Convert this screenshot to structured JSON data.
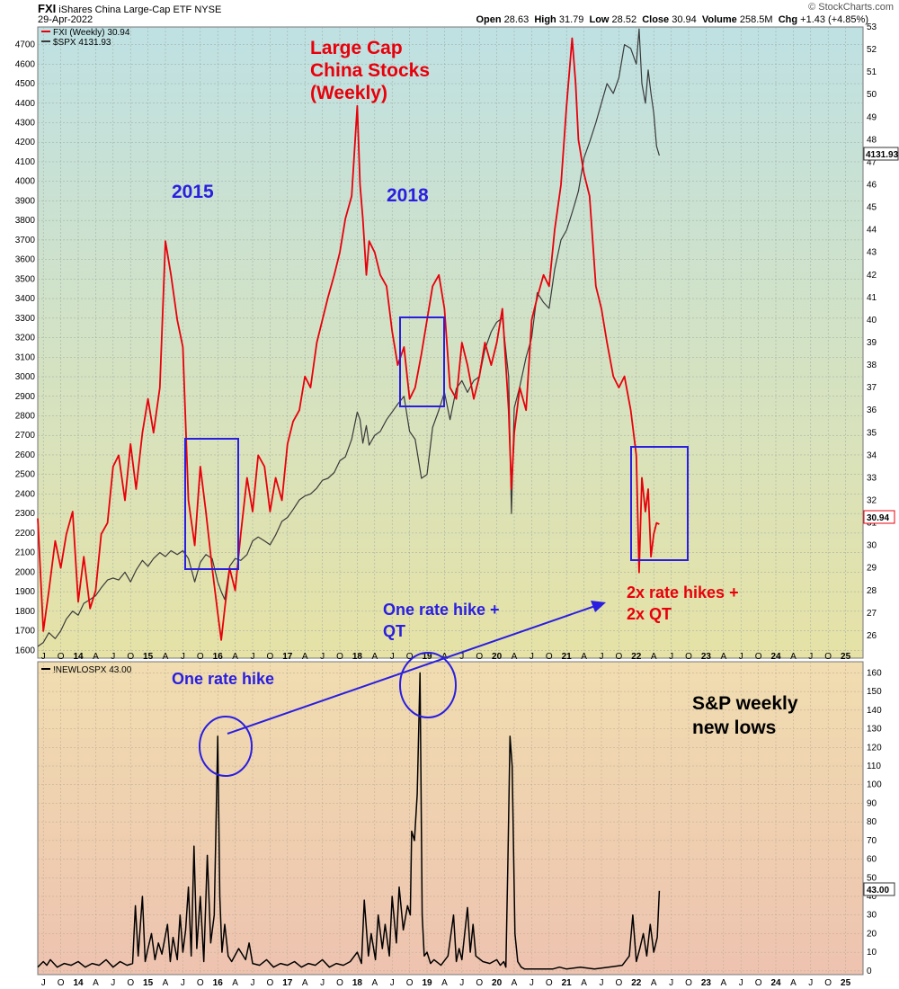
{
  "header": {
    "symbol": "FXI",
    "name": "iShares China Large-Cap ETF",
    "exchange": "NYSE",
    "date": "29-Apr-2022",
    "open_label": "Open",
    "open": "28.63",
    "high_label": "High",
    "high": "31.79",
    "low_label": "Low",
    "low": "28.52",
    "close_label": "Close",
    "close": "30.94",
    "volume_label": "Volume",
    "volume": "258.5M",
    "chg_label": "Chg",
    "chg": "+1.43 (+4.85%)",
    "watermark": "© StockCharts.com"
  },
  "colors": {
    "fxi": "#e8000b",
    "spx": "#3a3a3a",
    "newlows": "#000000",
    "annotation_blue": "#2a1ee0",
    "annotation_red": "#e8000b",
    "top_gradient": [
      "#bfe1e3",
      "#e6e2a6"
    ],
    "bottom_gradient": [
      "#f0ddb0",
      "#eec3b0"
    ]
  },
  "chart_data": [
    {
      "type": "line",
      "panel": "top",
      "legend": [
        "FXI (Weekly) 30.94",
        "$SPX 4131.93"
      ],
      "x_ticks": [
        "J",
        "O",
        "14",
        "A",
        "J",
        "O",
        "15",
        "A",
        "J",
        "O",
        "16",
        "A",
        "J",
        "O",
        "17",
        "A",
        "J",
        "O",
        "18",
        "A",
        "J",
        "O",
        "19",
        "A",
        "J",
        "O",
        "20",
        "A",
        "J",
        "O",
        "21",
        "A",
        "J",
        "O",
        "22",
        "A",
        "J",
        "O",
        "23",
        "A",
        "J",
        "O",
        "24",
        "A",
        "J",
        "O",
        "25"
      ],
      "x_range": [
        2013.42,
        2025.25
      ],
      "left_axis": {
        "label": "$SPX",
        "ylim": [
          1560,
          4790
        ],
        "ticks": [
          1600,
          1700,
          1800,
          1900,
          2000,
          2100,
          2200,
          2300,
          2400,
          2500,
          2600,
          2700,
          2800,
          2900,
          3000,
          3100,
          3200,
          3300,
          3400,
          3500,
          3600,
          3700,
          3800,
          3900,
          4000,
          4100,
          4200,
          4300,
          4400,
          4500,
          4600,
          4700
        ]
      },
      "right_axis": {
        "label": "FXI",
        "ylim": [
          25,
          53
        ],
        "ticks": [
          26,
          27,
          28,
          29,
          30,
          31,
          32,
          33,
          34,
          35,
          36,
          37,
          38,
          39,
          40,
          41,
          42,
          43,
          44,
          45,
          46,
          47,
          48,
          49,
          50,
          51,
          52,
          53
        ]
      },
      "last_values": {
        "spx": "4131.93",
        "fxi": "30.94"
      },
      "series": [
        {
          "name": "FXI (Weekly) 30.94",
          "axis": "right",
          "x": [
            2013.42,
            2013.5,
            2013.58,
            2013.67,
            2013.75,
            2013.83,
            2013.92,
            2014.0,
            2014.08,
            2014.17,
            2014.25,
            2014.33,
            2014.42,
            2014.5,
            2014.58,
            2014.67,
            2014.75,
            2014.83,
            2014.92,
            2015.0,
            2015.08,
            2015.17,
            2015.25,
            2015.33,
            2015.42,
            2015.5,
            2015.58,
            2015.67,
            2015.75,
            2015.83,
            2015.92,
            2016.0,
            2016.05,
            2016.1,
            2016.17,
            2016.25,
            2016.33,
            2016.42,
            2016.5,
            2016.58,
            2016.67,
            2016.75,
            2016.83,
            2016.92,
            2017.0,
            2017.08,
            2017.17,
            2017.25,
            2017.33,
            2017.42,
            2017.5,
            2017.58,
            2017.67,
            2017.75,
            2017.83,
            2017.92,
            2018.0,
            2018.04,
            2018.08,
            2018.13,
            2018.17,
            2018.25,
            2018.33,
            2018.42,
            2018.5,
            2018.58,
            2018.67,
            2018.75,
            2018.83,
            2018.92,
            2019.0,
            2019.08,
            2019.17,
            2019.25,
            2019.33,
            2019.42,
            2019.5,
            2019.58,
            2019.67,
            2019.75,
            2019.83,
            2019.92,
            2020.0,
            2020.08,
            2020.17,
            2020.21,
            2020.25,
            2020.33,
            2020.42,
            2020.5,
            2020.58,
            2020.67,
            2020.75,
            2020.83,
            2020.92,
            2021.0,
            2021.08,
            2021.13,
            2021.17,
            2021.25,
            2021.33,
            2021.42,
            2021.5,
            2021.58,
            2021.67,
            2021.75,
            2021.83,
            2021.92,
            2022.0,
            2022.04,
            2022.08,
            2022.13,
            2022.17,
            2022.21,
            2022.25,
            2022.29,
            2022.33
          ],
          "y": [
            31.2,
            26.2,
            28.0,
            30.2,
            29.0,
            30.5,
            31.5,
            27.5,
            29.5,
            27.2,
            28.0,
            30.5,
            31.0,
            33.5,
            34.0,
            32.0,
            34.5,
            32.5,
            35.0,
            36.5,
            35.0,
            37.0,
            43.5,
            42.0,
            40.0,
            38.8,
            32.0,
            30.0,
            33.5,
            31.5,
            29.0,
            27.0,
            25.8,
            27.2,
            29.0,
            28.0,
            30.5,
            33.0,
            31.5,
            34.0,
            33.5,
            31.5,
            33.0,
            32.0,
            34.5,
            35.5,
            36.0,
            37.5,
            37.0,
            39.0,
            40.0,
            41.0,
            42.0,
            43.0,
            44.5,
            45.5,
            49.5,
            46.0,
            44.5,
            42.0,
            43.5,
            43.0,
            42.0,
            41.5,
            39.5,
            38.0,
            38.8,
            36.5,
            37.0,
            38.5,
            40.0,
            41.5,
            42.0,
            40.5,
            37.0,
            36.5,
            39.0,
            38.0,
            36.5,
            37.5,
            39.0,
            38.0,
            39.0,
            40.5,
            36.0,
            32.5,
            35.0,
            37.0,
            36.0,
            40.0,
            41.0,
            42.0,
            41.5,
            44.0,
            46.0,
            49.5,
            52.5,
            50.5,
            48.0,
            46.5,
            45.5,
            41.5,
            40.5,
            39.0,
            37.5,
            37.0,
            37.5,
            36.0,
            34.0,
            28.8,
            33.0,
            31.5,
            32.5,
            29.5,
            30.5,
            31.0,
            30.94
          ]
        },
        {
          "name": "$SPX 4131.93",
          "axis": "left",
          "x": [
            2013.42,
            2013.5,
            2013.58,
            2013.67,
            2013.75,
            2013.83,
            2013.92,
            2014.0,
            2014.08,
            2014.17,
            2014.25,
            2014.33,
            2014.42,
            2014.5,
            2014.58,
            2014.67,
            2014.75,
            2014.83,
            2014.92,
            2015.0,
            2015.08,
            2015.17,
            2015.25,
            2015.33,
            2015.42,
            2015.5,
            2015.58,
            2015.67,
            2015.75,
            2015.83,
            2015.92,
            2016.0,
            2016.05,
            2016.1,
            2016.17,
            2016.25,
            2016.33,
            2016.42,
            2016.5,
            2016.58,
            2016.67,
            2016.75,
            2016.83,
            2016.92,
            2017.0,
            2017.08,
            2017.17,
            2017.25,
            2017.33,
            2017.42,
            2017.5,
            2017.58,
            2017.67,
            2017.75,
            2017.83,
            2017.92,
            2018.0,
            2018.04,
            2018.08,
            2018.13,
            2018.17,
            2018.25,
            2018.33,
            2018.42,
            2018.5,
            2018.58,
            2018.67,
            2018.75,
            2018.83,
            2018.92,
            2019.0,
            2019.08,
            2019.17,
            2019.25,
            2019.33,
            2019.42,
            2019.5,
            2019.58,
            2019.67,
            2019.75,
            2019.83,
            2019.92,
            2020.0,
            2020.08,
            2020.17,
            2020.21,
            2020.25,
            2020.33,
            2020.42,
            2020.5,
            2020.58,
            2020.67,
            2020.75,
            2020.83,
            2020.92,
            2021.0,
            2021.08,
            2021.13,
            2021.17,
            2021.25,
            2021.33,
            2021.42,
            2021.5,
            2021.58,
            2021.67,
            2021.75,
            2021.83,
            2021.92,
            2022.0,
            2022.04,
            2022.08,
            2022.13,
            2022.17,
            2022.21,
            2022.25,
            2022.29,
            2022.33
          ],
          "y": [
            1620,
            1640,
            1690,
            1660,
            1700,
            1760,
            1800,
            1780,
            1840,
            1860,
            1880,
            1920,
            1960,
            1970,
            1960,
            2000,
            1950,
            2010,
            2060,
            2030,
            2070,
            2100,
            2080,
            2110,
            2090,
            2110,
            2070,
            1950,
            2050,
            2090,
            2070,
            1950,
            1900,
            1860,
            2030,
            2070,
            2060,
            2090,
            2160,
            2180,
            2160,
            2140,
            2190,
            2260,
            2280,
            2320,
            2370,
            2390,
            2400,
            2430,
            2470,
            2480,
            2510,
            2570,
            2590,
            2680,
            2820,
            2780,
            2660,
            2750,
            2650,
            2700,
            2720,
            2780,
            2820,
            2860,
            2900,
            2720,
            2680,
            2480,
            2500,
            2740,
            2830,
            2920,
            2780,
            2940,
            2980,
            2920,
            2980,
            3000,
            3140,
            3230,
            3280,
            3300,
            3000,
            2300,
            2840,
            2950,
            3100,
            3200,
            3430,
            3380,
            3350,
            3550,
            3700,
            3750,
            3840,
            3900,
            3950,
            4120,
            4200,
            4300,
            4400,
            4500,
            4450,
            4530,
            4700,
            4680,
            4600,
            4780,
            4500,
            4400,
            4570,
            4450,
            4350,
            4180,
            4131.93
          ]
        }
      ]
    },
    {
      "type": "line",
      "panel": "bottom",
      "legend": [
        "!NEWLOSPX 43.00"
      ],
      "x_ticks": [
        "J",
        "O",
        "14",
        "A",
        "J",
        "O",
        "15",
        "A",
        "J",
        "O",
        "16",
        "A",
        "J",
        "O",
        "17",
        "A",
        "J",
        "O",
        "18",
        "A",
        "J",
        "O",
        "19",
        "A",
        "J",
        "O",
        "20",
        "A",
        "J",
        "O",
        "21",
        "A",
        "J",
        "O",
        "22",
        "A",
        "J",
        "O",
        "23",
        "A",
        "J",
        "O",
        "24",
        "A",
        "J",
        "O",
        "25"
      ],
      "x_range": [
        2013.42,
        2025.25
      ],
      "right_axis": {
        "ylim": [
          -2,
          166
        ],
        "ticks": [
          0,
          10,
          20,
          30,
          40,
          50,
          60,
          70,
          80,
          90,
          100,
          110,
          120,
          130,
          140,
          150,
          160
        ]
      },
      "last_value": "43.00",
      "series": [
        {
          "name": "!NEWLOSPX 43.00",
          "x": [
            2013.42,
            2013.5,
            2013.55,
            2013.6,
            2013.7,
            2013.8,
            2013.9,
            2014.0,
            2014.1,
            2014.2,
            2014.3,
            2014.4,
            2014.5,
            2014.6,
            2014.7,
            2014.78,
            2014.82,
            2014.86,
            2014.92,
            2014.96,
            2015.0,
            2015.05,
            2015.1,
            2015.15,
            2015.2,
            2015.28,
            2015.32,
            2015.36,
            2015.42,
            2015.46,
            2015.5,
            2015.54,
            2015.58,
            2015.62,
            2015.66,
            2015.7,
            2015.75,
            2015.8,
            2015.85,
            2015.9,
            2015.95,
            2016.0,
            2016.03,
            2016.06,
            2016.1,
            2016.15,
            2016.2,
            2016.3,
            2016.4,
            2016.45,
            2016.5,
            2016.6,
            2016.7,
            2016.8,
            2016.9,
            2017.0,
            2017.1,
            2017.2,
            2017.3,
            2017.4,
            2017.5,
            2017.6,
            2017.7,
            2017.8,
            2017.9,
            2018.0,
            2018.06,
            2018.1,
            2018.16,
            2018.2,
            2018.26,
            2018.3,
            2018.36,
            2018.4,
            2018.46,
            2018.5,
            2018.56,
            2018.6,
            2018.66,
            2018.72,
            2018.76,
            2018.78,
            2018.82,
            2018.86,
            2018.9,
            2018.93,
            2018.96,
            2019.0,
            2019.05,
            2019.1,
            2019.2,
            2019.3,
            2019.38,
            2019.42,
            2019.46,
            2019.5,
            2019.58,
            2019.62,
            2019.66,
            2019.7,
            2019.8,
            2019.9,
            2020.0,
            2020.05,
            2020.1,
            2020.13,
            2020.16,
            2020.19,
            2020.22,
            2020.26,
            2020.3,
            2020.35,
            2020.4,
            2020.5,
            2020.6,
            2020.7,
            2020.8,
            2020.9,
            2021.0,
            2021.2,
            2021.4,
            2021.6,
            2021.8,
            2021.9,
            2021.95,
            2022.0,
            2022.05,
            2022.1,
            2022.15,
            2022.2,
            2022.25,
            2022.3,
            2022.33
          ],
          "y": [
            2,
            5,
            3,
            6,
            2,
            4,
            3,
            5,
            2,
            4,
            3,
            6,
            2,
            5,
            3,
            4,
            35,
            8,
            40,
            5,
            12,
            20,
            6,
            15,
            9,
            25,
            5,
            18,
            6,
            30,
            10,
            22,
            45,
            8,
            67,
            12,
            40,
            5,
            62,
            15,
            30,
            126,
            40,
            10,
            25,
            8,
            5,
            12,
            6,
            15,
            4,
            3,
            6,
            2,
            4,
            3,
            5,
            2,
            4,
            3,
            6,
            2,
            4,
            3,
            5,
            10,
            4,
            38,
            8,
            20,
            6,
            30,
            12,
            25,
            8,
            40,
            15,
            45,
            22,
            35,
            30,
            75,
            70,
            95,
            160,
            30,
            8,
            10,
            4,
            6,
            3,
            8,
            30,
            5,
            12,
            6,
            34,
            10,
            25,
            8,
            5,
            4,
            6,
            3,
            5,
            2,
            60,
            126,
            110,
            20,
            5,
            2,
            1,
            1,
            1,
            1,
            1,
            2,
            1,
            2,
            1,
            2,
            3,
            8,
            30,
            5,
            12,
            20,
            8,
            25,
            10,
            18,
            43
          ]
        }
      ]
    }
  ],
  "annotations": {
    "title_lines": [
      "Large Cap",
      "China Stocks",
      "(Weekly)"
    ],
    "label_2015": "2015",
    "label_2018": "2018",
    "one_rate_hike_qt_lines": [
      "One rate hike +",
      "QT"
    ],
    "rate_hikes_lines": [
      "2x rate hikes +",
      "2x QT"
    ],
    "one_rate_hike": "One rate hike",
    "new_lows_lines": [
      "S&P weekly",
      "new lows"
    ]
  }
}
